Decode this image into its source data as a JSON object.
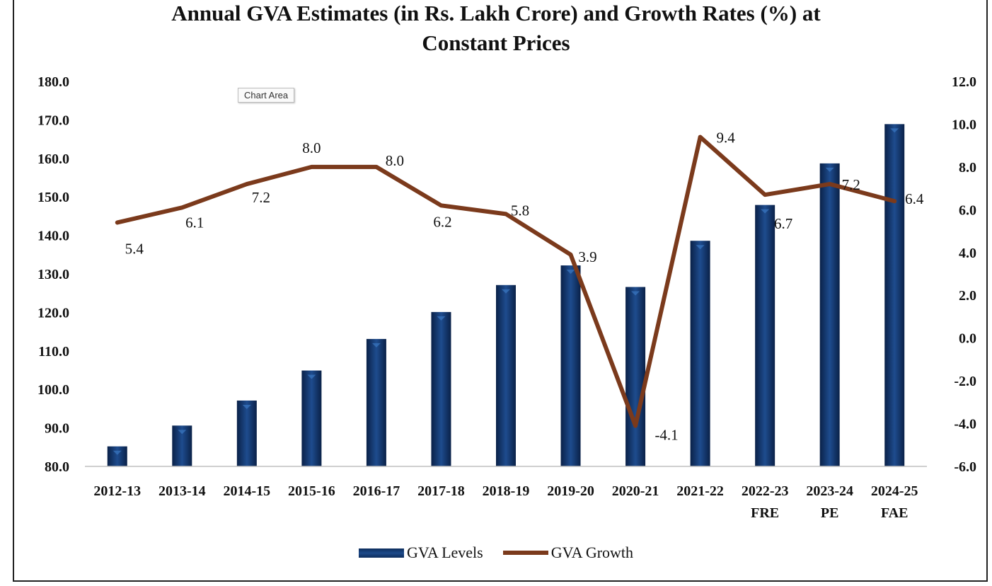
{
  "chart_data": {
    "type": "bar+line",
    "title_line1": "Annual GVA Estimates (in Rs. Lakh Crore) and Growth Rates (%) at",
    "title_line2": "Constant Prices",
    "categories": [
      [
        "2012-13"
      ],
      [
        "2013-14"
      ],
      [
        "2014-15"
      ],
      [
        "2015-16"
      ],
      [
        "2016-17"
      ],
      [
        "2017-18"
      ],
      [
        "2018-19"
      ],
      [
        "2019-20"
      ],
      [
        "2020-21"
      ],
      [
        "2021-22"
      ],
      [
        "2022-23",
        "FRE"
      ],
      [
        "2023-24",
        "PE"
      ],
      [
        "2024-25",
        "FAE"
      ]
    ],
    "series": [
      {
        "name": "GVA Levels",
        "type": "bar",
        "axis": "left",
        "values": [
          85.2,
          90.6,
          97.1,
          104.9,
          113.1,
          120.1,
          127.1,
          132.2,
          126.6,
          138.6,
          147.9,
          158.7,
          168.9
        ]
      },
      {
        "name": "GVA Growth",
        "type": "line",
        "axis": "right",
        "values": [
          5.4,
          6.1,
          7.2,
          8.0,
          8.0,
          6.2,
          5.8,
          3.9,
          -4.1,
          9.4,
          6.7,
          7.2,
          6.4
        ],
        "labels": [
          "5.4",
          "6.1",
          "7.2",
          "8.0",
          "8.0",
          "6.2",
          "5.8",
          "3.9",
          "-4.1",
          "9.4",
          "6.7",
          "7.2",
          "6.4"
        ]
      }
    ],
    "y_left": {
      "min": 80,
      "max": 180,
      "step": 10,
      "ticks": [
        "80.0",
        "90.0",
        "100.0",
        "110.0",
        "120.0",
        "130.0",
        "140.0",
        "150.0",
        "160.0",
        "170.0",
        "180.0"
      ]
    },
    "y_right": {
      "min": -6,
      "max": 12,
      "step": 2,
      "ticks": [
        "-6.0",
        "-4.0",
        "-2.0",
        "0.0",
        "2.0",
        "4.0",
        "6.0",
        "8.0",
        "10.0",
        "12.0"
      ]
    },
    "colors": {
      "bar": "#173e78",
      "bar_dark": "#0b2650",
      "line": "#7b3a1c",
      "axis": "#bfbfbf"
    },
    "legend": [
      "GVA Levels",
      "GVA Growth"
    ],
    "legend_position": "bottom"
  },
  "ui": {
    "tooltip": "Chart Area"
  }
}
